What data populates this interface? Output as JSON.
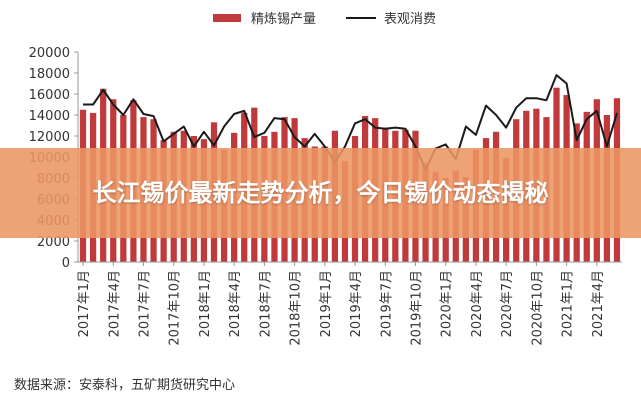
{
  "chart_data": {
    "type": "bar",
    "title": "",
    "xlabel": "",
    "ylabel": "",
    "ylim": [
      0,
      20000
    ],
    "yticks": [
      0,
      2000,
      4000,
      6000,
      8000,
      10000,
      12000,
      14000,
      16000,
      18000,
      20000
    ],
    "legend_position": "top-center",
    "grid": false,
    "x_tick_labels": [
      "2017年1月",
      "2017年4月",
      "2017年7月",
      "2017年10月",
      "2018年1月",
      "2018年4月",
      "2018年7月",
      "2018年10月",
      "2019年1月",
      "2019年4月",
      "2019年7月",
      "2019年10月",
      "2020年1月",
      "2020年4月",
      "2020年7月",
      "2020年10月",
      "2021年1月",
      "2021年4月"
    ],
    "categories": [
      "2017-01",
      "2017-02",
      "2017-03",
      "2017-04",
      "2017-05",
      "2017-06",
      "2017-07",
      "2017-08",
      "2017-09",
      "2017-10",
      "2017-11",
      "2017-12",
      "2018-01",
      "2018-02",
      "2018-03",
      "2018-04",
      "2018-05",
      "2018-06",
      "2018-07",
      "2018-08",
      "2018-09",
      "2018-10",
      "2018-11",
      "2018-12",
      "2019-01",
      "2019-02",
      "2019-03",
      "2019-04",
      "2019-05",
      "2019-06",
      "2019-07",
      "2019-08",
      "2019-09",
      "2019-10",
      "2019-11",
      "2019-12",
      "2020-01",
      "2020-02",
      "2020-03",
      "2020-04",
      "2020-05",
      "2020-06",
      "2020-07",
      "2020-08",
      "2020-09",
      "2020-10",
      "2020-11",
      "2020-12",
      "2021-01",
      "2021-02",
      "2021-03",
      "2021-04",
      "2021-05",
      "2021-06"
    ],
    "series": [
      {
        "name": "精炼锡产量",
        "kind": "bar",
        "color": "#c0393b",
        "values": [
          14500,
          14200,
          16500,
          15500,
          14000,
          15400,
          13800,
          13600,
          11600,
          12400,
          12500,
          12000,
          11700,
          13300,
          10700,
          12300,
          14200,
          14700,
          12000,
          12400,
          13800,
          13700,
          11800,
          11000,
          11000,
          12500,
          9600,
          12000,
          13900,
          13700,
          12800,
          12500,
          12600,
          12500,
          9400,
          8600,
          8000,
          8700,
          8100,
          10700,
          11800,
          12400,
          9900,
          13600,
          14400,
          14600,
          13800,
          16600,
          15900,
          13200,
          14300,
          15500,
          14000,
          15600
        ]
      },
      {
        "name": "表观消费",
        "kind": "line",
        "color": "#1a1a1a",
        "values": [
          15000,
          15000,
          16400,
          15000,
          14000,
          15500,
          14100,
          13900,
          11500,
          12200,
          12900,
          11000,
          12400,
          11100,
          12900,
          14100,
          14400,
          11900,
          12300,
          13700,
          13600,
          11900,
          11000,
          12200,
          11000,
          9500,
          11000,
          13200,
          13600,
          12800,
          12700,
          12800,
          12700,
          11000,
          8800,
          10800,
          11200,
          9800,
          12900,
          12100,
          14900,
          14000,
          12800,
          14700,
          15600,
          15600,
          15400,
          17800,
          17000,
          11600,
          13600,
          14400,
          11000,
          14200
        ]
      }
    ]
  },
  "overlay": {
    "title": "长江锡价最新走势分析，今日锡价动态揭秘"
  },
  "source": "数据来源：安泰科，五矿期货研究中心"
}
